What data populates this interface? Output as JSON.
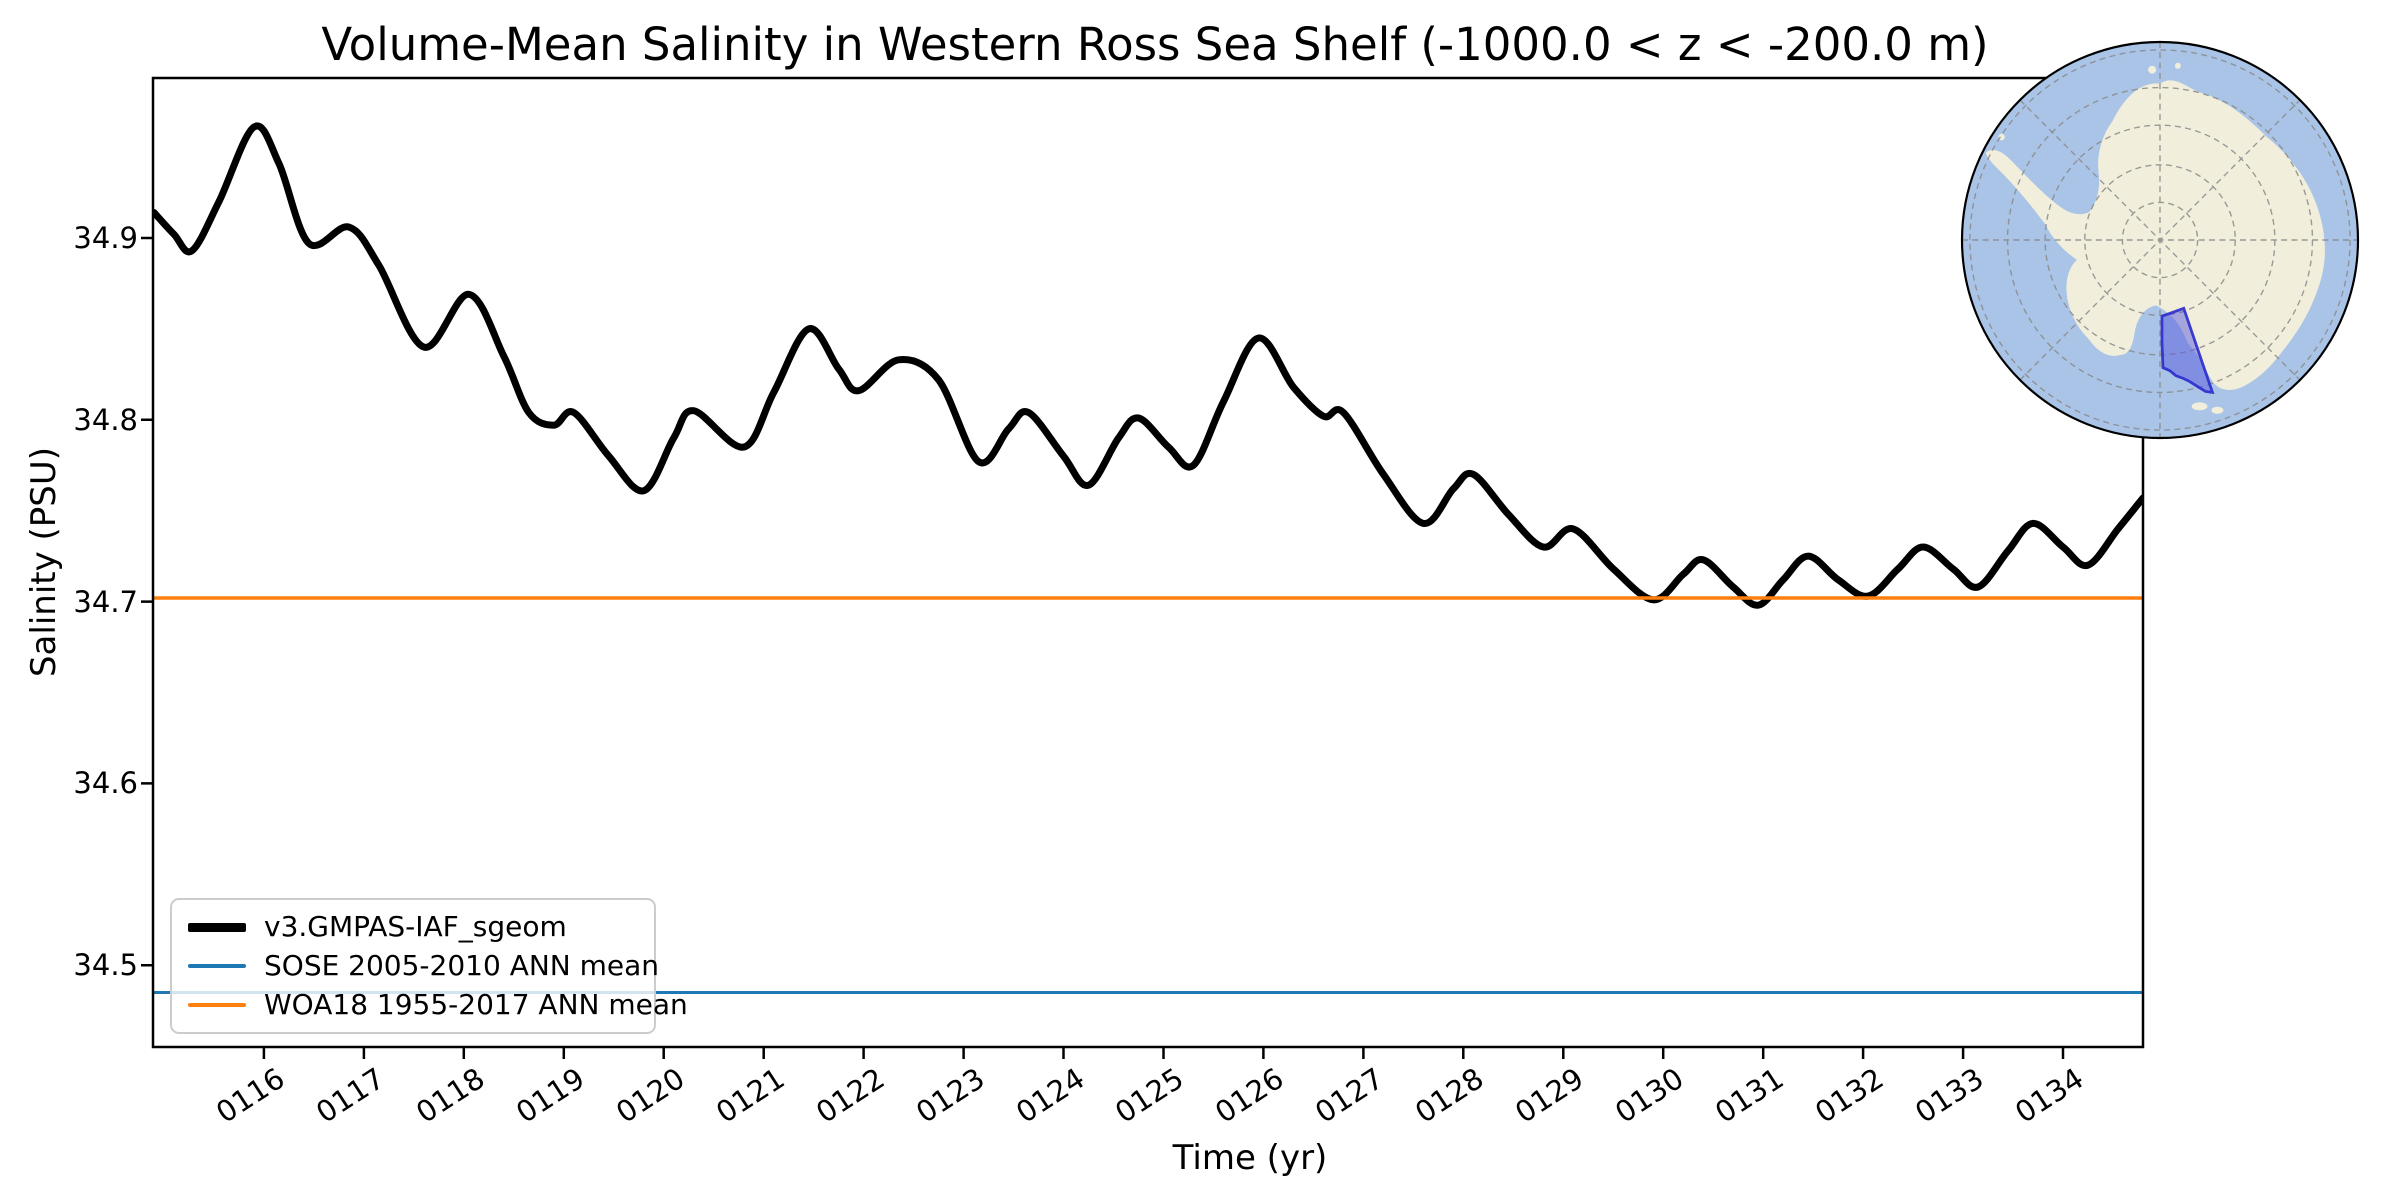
{
  "title": "Volume-Mean Salinity in Western Ross Sea Shelf (-1000.0 < z < -200.0 m)",
  "xlabel": "Time (yr)",
  "ylabel": "Salinity (PSU)",
  "legend": [
    {
      "label": "v3.GMPAS-IAF_sgeom",
      "color": "#000000",
      "sample_height": 9
    },
    {
      "label": "SOSE 2005-2010 ANN mean",
      "color": "#1f77b4",
      "sample_height": 4
    },
    {
      "label": "WOA18 1955-2017 ANN mean",
      "color": "#ff7f0e",
      "sample_height": 4
    }
  ],
  "colors": {
    "curve": "#000000",
    "sose": "#1f77b4",
    "woa": "#ff7f0e",
    "map-ocean": "#a9c4e7",
    "map-land": "#f1efdb",
    "map-graticule": "#8a8a8a",
    "map-region-fill": "#5a5ae0",
    "map-region-edge": "#2b2bcc"
  },
  "chart_data": {
    "type": "line",
    "title": "Volume-Mean Salinity in Western Ross Sea Shelf (-1000.0 < z < -200.0 m)",
    "xlabel": "Time (yr)",
    "ylabel": "Salinity (PSU)",
    "xlim": [
      114.89,
      134.8
    ],
    "ylim": [
      34.455,
      34.988
    ],
    "grid": false,
    "legend_position": "lower left",
    "x_ticks": {
      "values": [
        116,
        117,
        118,
        119,
        120,
        121,
        122,
        123,
        124,
        125,
        126,
        127,
        128,
        129,
        130,
        131,
        132,
        133,
        134
      ],
      "labels": [
        "0116",
        "0117",
        "0118",
        "0119",
        "0120",
        "0121",
        "0122",
        "0123",
        "0124",
        "0125",
        "0126",
        "0127",
        "0128",
        "0129",
        "0130",
        "0131",
        "0132",
        "0133",
        "0134"
      ]
    },
    "y_ticks": {
      "values": [
        34.5,
        34.6,
        34.7,
        34.8,
        34.9
      ],
      "labels": [
        "34.5",
        "34.6",
        "34.7",
        "34.8",
        "34.9"
      ]
    },
    "series": [
      {
        "name": "v3.GMPAS-IAF_sgeom",
        "type": "line",
        "color": "#000000",
        "linewidth": 7,
        "points": [
          [
            114.9,
            34.914
          ],
          [
            115.1,
            34.902
          ],
          [
            115.28,
            34.893
          ],
          [
            115.55,
            34.92
          ],
          [
            115.9,
            34.961
          ],
          [
            116.15,
            34.941
          ],
          [
            116.45,
            34.897
          ],
          [
            116.85,
            34.906
          ],
          [
            117.15,
            34.885
          ],
          [
            117.6,
            34.84
          ],
          [
            118.05,
            34.869
          ],
          [
            118.4,
            34.835
          ],
          [
            118.65,
            34.804
          ],
          [
            118.9,
            34.797
          ],
          [
            119.1,
            34.804
          ],
          [
            119.45,
            34.78
          ],
          [
            119.8,
            34.761
          ],
          [
            120.1,
            34.79
          ],
          [
            120.3,
            34.805
          ],
          [
            120.8,
            34.785
          ],
          [
            121.1,
            34.815
          ],
          [
            121.45,
            34.85
          ],
          [
            121.75,
            34.828
          ],
          [
            121.95,
            34.816
          ],
          [
            122.35,
            34.833
          ],
          [
            122.75,
            34.822
          ],
          [
            123.15,
            34.777
          ],
          [
            123.45,
            34.795
          ],
          [
            123.65,
            34.804
          ],
          [
            124.0,
            34.78
          ],
          [
            124.25,
            34.764
          ],
          [
            124.55,
            34.79
          ],
          [
            124.75,
            34.801
          ],
          [
            125.05,
            34.785
          ],
          [
            125.3,
            34.775
          ],
          [
            125.6,
            34.81
          ],
          [
            125.95,
            34.845
          ],
          [
            126.3,
            34.818
          ],
          [
            126.6,
            34.802
          ],
          [
            126.8,
            34.804
          ],
          [
            127.2,
            34.77
          ],
          [
            127.6,
            34.743
          ],
          [
            127.9,
            34.762
          ],
          [
            128.1,
            34.77
          ],
          [
            128.45,
            34.748
          ],
          [
            128.8,
            34.73
          ],
          [
            129.1,
            34.74
          ],
          [
            129.5,
            34.718
          ],
          [
            129.9,
            34.701
          ],
          [
            130.2,
            34.715
          ],
          [
            130.4,
            34.723
          ],
          [
            130.7,
            34.708
          ],
          [
            130.95,
            34.698
          ],
          [
            131.2,
            34.712
          ],
          [
            131.45,
            34.725
          ],
          [
            131.75,
            34.712
          ],
          [
            132.05,
            34.703
          ],
          [
            132.35,
            34.718
          ],
          [
            132.6,
            34.73
          ],
          [
            132.9,
            34.718
          ],
          [
            133.15,
            34.708
          ],
          [
            133.45,
            34.728
          ],
          [
            133.7,
            34.743
          ],
          [
            134.0,
            34.73
          ],
          [
            134.25,
            34.72
          ],
          [
            134.55,
            34.74
          ],
          [
            134.8,
            34.757
          ]
        ]
      },
      {
        "name": "SOSE 2005-2010 ANN mean",
        "type": "hline",
        "value": 34.485,
        "color": "#1f77b4",
        "linewidth": 3
      },
      {
        "name": "WOA18 1955-2017 ANN mean",
        "type": "hline",
        "value": 34.702,
        "color": "#ff7f0e",
        "linewidth": 3.5
      }
    ],
    "inset_map": {
      "description": "South polar orthographic view of Antarctica with the Western Ross Sea shelf region highlighted in translucent blue-purple",
      "highlighted_region": "Western Ross Sea Shelf"
    }
  }
}
